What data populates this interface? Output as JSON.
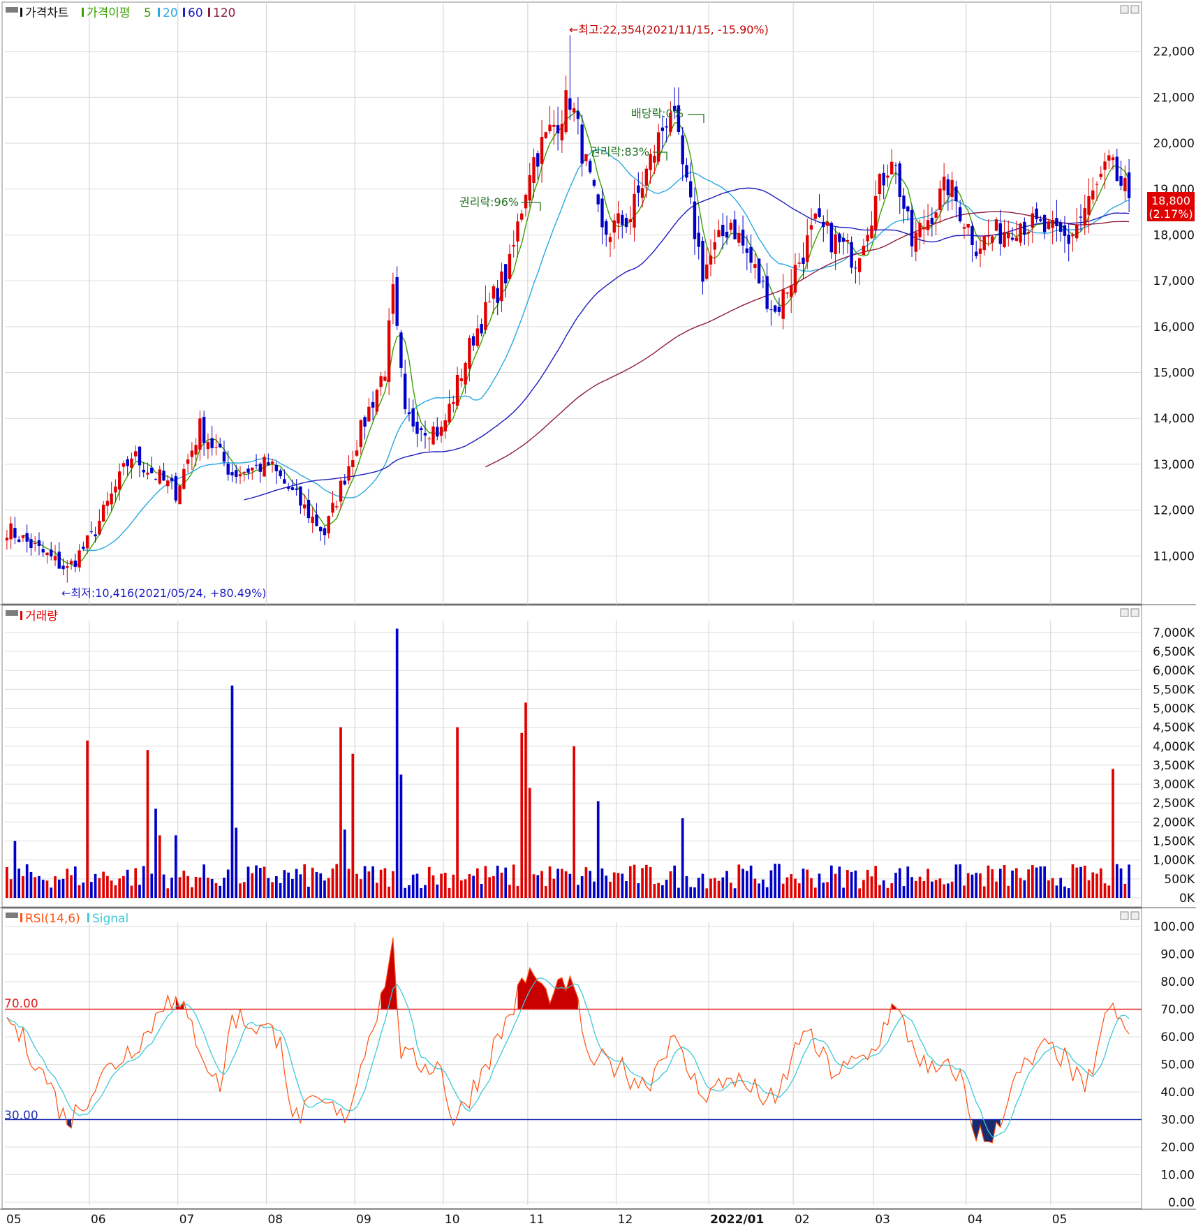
{
  "panels": {
    "price": {
      "title": "가격차트",
      "ma_label": "가격이평",
      "ma_periods": [
        "5",
        "20",
        "60",
        "120"
      ]
    },
    "volume": {
      "title": "거래량"
    },
    "rsi": {
      "title": "RSI(14,6)",
      "signal_label": "Signal",
      "level_high": "70.00",
      "level_low": "30.00"
    }
  },
  "annotations": {
    "high": "←최고:22,354(2021/11/15, -15.90%)",
    "low": "←최저:10,416(2021/05/24, +80.49%)",
    "ex_rights_1": "권리락:96%",
    "ex_rights_2": "권리락:83%",
    "ex_dividend": "배당락:0%"
  },
  "last_price": {
    "price": "18,800",
    "change": "(2.17%)"
  },
  "colors": {
    "up": "#e00000",
    "down": "#0000c8",
    "ma5": "#3aa000",
    "ma20": "#2aa8e0",
    "ma60": "#1c1cc0",
    "ma120": "#8c1c3c",
    "rsi": "#ff5010",
    "signal": "#3ec8d8",
    "line70": "#e02020",
    "line30": "#2030b0",
    "fill_high": "#c80000",
    "fill_low": "#1a2a6c"
  },
  "chart_data": [
    {
      "type": "candlestick",
      "title": "가격차트",
      "x_labels": [
        "05",
        "06",
        "07",
        "08",
        "09",
        "10",
        "11",
        "12",
        "2022/01",
        "02",
        "03",
        "04",
        "05"
      ],
      "y_ticks": [
        "11,000",
        "12,000",
        "13,000",
        "14,000",
        "15,000",
        "16,000",
        "17,000",
        "18,000",
        "19,000",
        "20,000",
        "21,000",
        "22,000"
      ],
      "ylim": [
        10000,
        23000
      ],
      "approx_close_path": [
        [
          "2021/05/03",
          11600
        ],
        [
          "2021/05/24",
          10700
        ],
        [
          "2021/06/01",
          11400
        ],
        [
          "2021/06/15",
          13200
        ],
        [
          "2021/06/30",
          12400
        ],
        [
          "2021/07/08",
          13800
        ],
        [
          "2021/07/20",
          12800
        ],
        [
          "2021/08/02",
          13000
        ],
        [
          "2021/08/20",
          11500
        ],
        [
          "2021/09/01",
          13500
        ],
        [
          "2021/09/10",
          15100
        ],
        [
          "2021/09/14",
          16700
        ],
        [
          "2021/09/17",
          14000
        ],
        [
          "2021/09/30",
          13700
        ],
        [
          "2021/10/12",
          15800
        ],
        [
          "2021/10/25",
          17300
        ],
        [
          "2021/11/01",
          19500
        ],
        [
          "2021/11/15",
          21000
        ],
        [
          "2021/11/25",
          18000
        ],
        [
          "2021/12/06",
          18400
        ],
        [
          "2021/12/20",
          20800
        ],
        [
          "2021/12/30",
          17200
        ],
        [
          "2022/01/10",
          18300
        ],
        [
          "2022/01/25",
          16300
        ],
        [
          "2022/02/08",
          18200
        ],
        [
          "2022/02/22",
          17500
        ],
        [
          "2022/03/07",
          19800
        ],
        [
          "2022/03/14",
          17800
        ],
        [
          "2022/03/25",
          19100
        ],
        [
          "2022/04/05",
          17800
        ],
        [
          "2022/04/20",
          18300
        ],
        [
          "2022/05/06",
          17900
        ],
        [
          "2022/05/20",
          19500
        ],
        [
          "2022/05/27",
          18800
        ]
      ],
      "high": {
        "date": "2021/11/15",
        "value": 22354
      },
      "low": {
        "date": "2021/05/24",
        "value": 10416
      },
      "last": 18800
    },
    {
      "type": "bar",
      "title": "거래량",
      "y_ticks": [
        "0K",
        "500K",
        "1,000K",
        "1,500K",
        "2,000K",
        "2,500K",
        "3,000K",
        "3,500K",
        "4,000K",
        "4,500K",
        "5,000K",
        "5,500K",
        "6,000K",
        "6,500K",
        "7,000K"
      ],
      "ylim": [
        0,
        7200
      ],
      "spikes_k": [
        [
          "2021/05/05",
          1500
        ],
        [
          "2021/05/31",
          4150
        ],
        [
          "2021/06/21",
          3900
        ],
        [
          "2021/06/23",
          2350
        ],
        [
          "2021/06/24",
          1650
        ],
        [
          "2021/06/30",
          1650
        ],
        [
          "2021/07/20",
          5600
        ],
        [
          "2021/07/21",
          1850
        ],
        [
          "2021/08/26",
          4500
        ],
        [
          "2021/08/27",
          1800
        ],
        [
          "2021/08/31",
          3800
        ],
        [
          "2021/09/15",
          7100
        ],
        [
          "2021/09/16",
          3250
        ],
        [
          "2021/10/06",
          4500
        ],
        [
          "2021/10/28",
          4350
        ],
        [
          "2021/10/29",
          5150
        ],
        [
          "2021/11/01",
          2900
        ],
        [
          "2021/11/16",
          4000
        ],
        [
          "2021/11/24",
          2550
        ],
        [
          "2021/12/23",
          2100
        ],
        [
          "2022/05/23",
          3400
        ]
      ]
    },
    {
      "type": "line",
      "title": "RSI(14,6)",
      "series_names": [
        "RSI(14,6)",
        "Signal"
      ],
      "y_ticks": [
        "0.00",
        "10.00",
        "20.00",
        "30.00",
        "40.00",
        "50.00",
        "60.00",
        "70.00",
        "80.00",
        "90.00",
        "100.00"
      ],
      "ylim": [
        0,
        100
      ],
      "reference_lines": [
        70,
        30
      ],
      "approx_rsi_path": [
        [
          "2021/05/03",
          67
        ],
        [
          "2021/05/14",
          48
        ],
        [
          "2021/05/24",
          28
        ],
        [
          "2021/06/03",
          45
        ],
        [
          "2021/06/20",
          62
        ],
        [
          "2021/06/28",
          75
        ],
        [
          "2021/07/05",
          67
        ],
        [
          "2021/07/15",
          40
        ],
        [
          "2021/07/20",
          68
        ],
        [
          "2021/08/05",
          60
        ],
        [
          "2021/08/10",
          31
        ],
        [
          "2021/08/20",
          36
        ],
        [
          "2021/08/27",
          29
        ],
        [
          "2021/09/05",
          60
        ],
        [
          "2021/09/10",
          78
        ],
        [
          "2021/09/14",
          96
        ],
        [
          "2021/09/16",
          52
        ],
        [
          "2021/09/30",
          49
        ],
        [
          "2021/10/05",
          28
        ],
        [
          "2021/10/15",
          50
        ],
        [
          "2021/10/25",
          68
        ],
        [
          "2021/11/01",
          85
        ],
        [
          "2021/11/08",
          72
        ],
        [
          "2021/11/15",
          82
        ],
        [
          "2021/11/22",
          52
        ],
        [
          "2021/12/01",
          49
        ],
        [
          "2021/12/10",
          42
        ],
        [
          "2021/12/20",
          60
        ],
        [
          "2021/12/30",
          38
        ],
        [
          "2022/01/10",
          45
        ],
        [
          "2022/01/25",
          36
        ],
        [
          "2022/02/03",
          62
        ],
        [
          "2022/02/15",
          46
        ],
        [
          "2022/03/01",
          55
        ],
        [
          "2022/03/07",
          72
        ],
        [
          "2022/03/18",
          47
        ],
        [
          "2022/03/30",
          48
        ],
        [
          "2022/04/04",
          27
        ],
        [
          "2022/04/08",
          22
        ],
        [
          "2022/04/20",
          47
        ],
        [
          "2022/05/02",
          58
        ],
        [
          "2022/05/12",
          40
        ],
        [
          "2022/05/20",
          70
        ],
        [
          "2022/05/27",
          61
        ]
      ]
    }
  ]
}
